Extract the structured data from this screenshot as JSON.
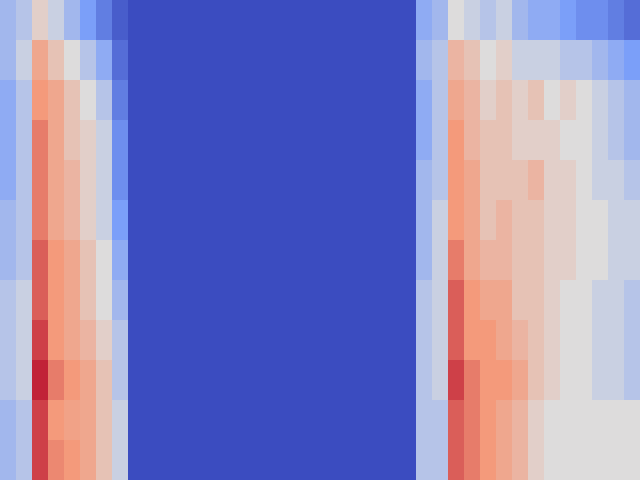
{
  "chart_data": {
    "type": "heatmap",
    "color": "coolwarm",
    "color_range": [
      0,
      1
    ],
    "tick_labels": false,
    "cells": [
      [
        0.35,
        0.4,
        0.55,
        0.45,
        0.35,
        0.25,
        0.15,
        0.05,
        0,
        0,
        0,
        0,
        0,
        0,
        0,
        0,
        0,
        0,
        0,
        0,
        0,
        0,
        0,
        0,
        0,
        0,
        0.3,
        0.35,
        0.5,
        0.45,
        0.4,
        0.45,
        0.35,
        0.3,
        0.3,
        0.25,
        0.2,
        0.2,
        0.15,
        0.1
      ],
      [
        0.35,
        0.45,
        0.7,
        0.6,
        0.5,
        0.4,
        0.3,
        0.1,
        0,
        0,
        0,
        0,
        0,
        0,
        0,
        0,
        0,
        0,
        0,
        0,
        0,
        0,
        0,
        0,
        0,
        0,
        0.35,
        0.4,
        0.65,
        0.6,
        0.5,
        0.55,
        0.45,
        0.45,
        0.45,
        0.4,
        0.4,
        0.35,
        0.3,
        0.25
      ],
      [
        0.3,
        0.4,
        0.75,
        0.7,
        0.6,
        0.5,
        0.4,
        0.15,
        0,
        0,
        0,
        0,
        0,
        0,
        0,
        0,
        0,
        0,
        0,
        0,
        0,
        0,
        0,
        0,
        0,
        0,
        0.3,
        0.4,
        0.7,
        0.65,
        0.55,
        0.6,
        0.55,
        0.6,
        0.5,
        0.55,
        0.5,
        0.45,
        0.4,
        0.35
      ],
      [
        0.3,
        0.4,
        0.8,
        0.7,
        0.6,
        0.55,
        0.45,
        0.2,
        0,
        0,
        0,
        0,
        0,
        0,
        0,
        0,
        0,
        0,
        0,
        0,
        0,
        0,
        0,
        0,
        0,
        0,
        0.3,
        0.4,
        0.75,
        0.65,
        0.6,
        0.6,
        0.55,
        0.55,
        0.55,
        0.5,
        0.5,
        0.45,
        0.4,
        0.35
      ],
      [
        0.3,
        0.4,
        0.8,
        0.7,
        0.65,
        0.55,
        0.45,
        0.2,
        0,
        0,
        0,
        0,
        0,
        0,
        0,
        0,
        0,
        0,
        0,
        0,
        0,
        0,
        0,
        0,
        0,
        0,
        0.35,
        0.4,
        0.75,
        0.7,
        0.6,
        0.6,
        0.6,
        0.65,
        0.55,
        0.55,
        0.5,
        0.45,
        0.45,
        0.4
      ],
      [
        0.35,
        0.4,
        0.8,
        0.7,
        0.65,
        0.55,
        0.45,
        0.25,
        0,
        0,
        0,
        0,
        0,
        0,
        0,
        0,
        0,
        0,
        0,
        0,
        0,
        0,
        0,
        0,
        0,
        0,
        0.35,
        0.45,
        0.75,
        0.7,
        0.6,
        0.65,
        0.6,
        0.6,
        0.55,
        0.55,
        0.5,
        0.5,
        0.45,
        0.45
      ],
      [
        0.35,
        0.4,
        0.85,
        0.75,
        0.7,
        0.6,
        0.5,
        0.3,
        0,
        0,
        0,
        0,
        0,
        0,
        0,
        0,
        0,
        0,
        0,
        0,
        0,
        0,
        0,
        0,
        0,
        0,
        0.35,
        0.45,
        0.8,
        0.7,
        0.65,
        0.65,
        0.6,
        0.6,
        0.55,
        0.55,
        0.5,
        0.5,
        0.45,
        0.45
      ],
      [
        0.4,
        0.45,
        0.85,
        0.75,
        0.7,
        0.6,
        0.5,
        0.35,
        0,
        0,
        0,
        0,
        0,
        0,
        0,
        0,
        0,
        0,
        0,
        0,
        0,
        0,
        0,
        0,
        0,
        0,
        0.4,
        0.45,
        0.85,
        0.75,
        0.7,
        0.7,
        0.6,
        0.6,
        0.55,
        0.5,
        0.5,
        0.45,
        0.45,
        0.4
      ],
      [
        0.4,
        0.45,
        0.9,
        0.75,
        0.7,
        0.65,
        0.55,
        0.4,
        0,
        0,
        0,
        0,
        0,
        0,
        0,
        0,
        0,
        0,
        0,
        0,
        0,
        0,
        0,
        0,
        0,
        0,
        0.4,
        0.45,
        0.85,
        0.75,
        0.75,
        0.7,
        0.65,
        0.6,
        0.55,
        0.5,
        0.5,
        0.45,
        0.45,
        0.4
      ],
      [
        0.4,
        0.45,
        0.95,
        0.8,
        0.75,
        0.7,
        0.6,
        0.4,
        0,
        0,
        0,
        0,
        0,
        0,
        0,
        0,
        0,
        0,
        0,
        0,
        0,
        0,
        0,
        0,
        0,
        0,
        0.4,
        0.45,
        0.9,
        0.8,
        0.75,
        0.75,
        0.7,
        0.6,
        0.55,
        0.5,
        0.5,
        0.45,
        0.45,
        0.4
      ],
      [
        0.35,
        0.4,
        0.9,
        0.75,
        0.72,
        0.7,
        0.6,
        0.45,
        0,
        0,
        0,
        0,
        0,
        0,
        0,
        0,
        0,
        0,
        0,
        0,
        0,
        0,
        0,
        0,
        0,
        0,
        0.4,
        0.4,
        0.85,
        0.8,
        0.75,
        0.7,
        0.65,
        0.55,
        0.5,
        0.5,
        0.5,
        0.5,
        0.5,
        0.5
      ],
      [
        0.35,
        0.4,
        0.9,
        0.78,
        0.75,
        0.7,
        0.6,
        0.45,
        0,
        0,
        0,
        0,
        0,
        0,
        0,
        0,
        0,
        0,
        0,
        0,
        0,
        0,
        0,
        0,
        0,
        0,
        0.4,
        0.4,
        0.85,
        0.8,
        0.75,
        0.7,
        0.65,
        0.55,
        0.5,
        0.5,
        0.5,
        0.5,
        0.5,
        0.5
      ]
    ]
  }
}
